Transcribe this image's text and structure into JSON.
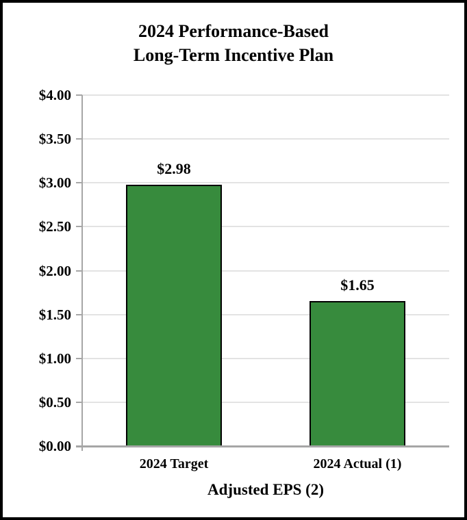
{
  "chart_data": {
    "type": "bar",
    "title": "2024 Performance-Based Long-Term Incentive Plan",
    "title_lines": [
      "2024 Performance-Based",
      "Long-Term Incentive Plan"
    ],
    "categories": [
      "2024 Target",
      "2024 Actual (1)"
    ],
    "values": [
      2.98,
      1.65
    ],
    "value_labels": [
      "$2.98",
      "$1.65"
    ],
    "xlabel": "Adjusted EPS (2)",
    "ylabel": "",
    "ylim": [
      0,
      4
    ],
    "ytick_step": 0.5,
    "yticks": [
      0,
      0.5,
      1,
      1.5,
      2,
      2.5,
      3,
      3.5,
      4
    ],
    "ytick_labels": [
      "$0.00",
      "$0.50",
      "$1.00",
      "$1.50",
      "$2.00",
      "$2.50",
      "$3.00",
      "$3.50",
      "$4.00"
    ],
    "grid": true,
    "legend": false,
    "colors": {
      "bar_fill": "#378b3d",
      "bar_border": "#000000",
      "gridline": "#e3e3e3",
      "axis_line": "#a6a6a6",
      "text": "#000000",
      "background": "#ffffff",
      "outer_border": "#000000"
    }
  }
}
